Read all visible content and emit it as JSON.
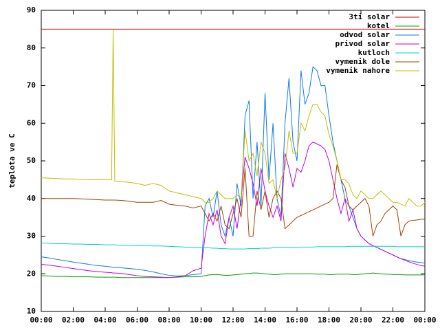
{
  "chart_data": {
    "type": "line",
    "ylabel": "teplota ve C",
    "x": [
      0,
      0.5,
      1,
      1.5,
      2,
      2.5,
      3,
      3.5,
      4,
      4.4,
      4.5,
      4.6,
      5,
      5.5,
      6,
      6.5,
      7,
      7.5,
      8,
      8.5,
      9,
      9.5,
      10,
      10.25,
      10.5,
      10.75,
      11,
      11.25,
      11.5,
      11.75,
      12,
      12.25,
      12.5,
      12.75,
      13,
      13.25,
      13.5,
      13.75,
      14,
      14.25,
      14.5,
      14.75,
      15,
      15.25,
      15.5,
      15.75,
      16,
      16.25,
      16.5,
      16.75,
      17,
      17.25,
      17.5,
      17.75,
      18,
      18.25,
      18.5,
      18.75,
      19,
      19.25,
      19.5,
      19.75,
      20,
      20.25,
      20.5,
      20.75,
      21,
      21.25,
      21.5,
      21.75,
      22,
      22.25,
      22.5,
      22.75,
      23,
      23.25,
      23.5,
      23.75,
      24
    ],
    "xlim": [
      0,
      24
    ],
    "xticks": [
      {
        "value": 0,
        "label": "00:00"
      },
      {
        "value": 2,
        "label": "02:00"
      },
      {
        "value": 4,
        "label": "04:00"
      },
      {
        "value": 6,
        "label": "06:00"
      },
      {
        "value": 8,
        "label": "08:00"
      },
      {
        "value": 10,
        "label": "10:00"
      },
      {
        "value": 12,
        "label": "12:00"
      },
      {
        "value": 14,
        "label": "14:00"
      },
      {
        "value": 16,
        "label": "16:00"
      },
      {
        "value": 18,
        "label": "18:00"
      },
      {
        "value": 20,
        "label": "20:00"
      },
      {
        "value": 22,
        "label": "22:00"
      },
      {
        "value": 24,
        "label": "00:00"
      }
    ],
    "ylim": [
      10,
      90
    ],
    "yticks": [
      10,
      20,
      30,
      40,
      50,
      60,
      70,
      80,
      90
    ],
    "grid": false,
    "legend": "top-right",
    "series": [
      {
        "name": "3ti solar",
        "color": "#c00000",
        "values": [
          85,
          85,
          85,
          85,
          85,
          85,
          85,
          85,
          85,
          85,
          85,
          85,
          85,
          85,
          85,
          85,
          85,
          85,
          85,
          85,
          85,
          85,
          85,
          85,
          85,
          85,
          85,
          85,
          85,
          85,
          85,
          85,
          85,
          85,
          85,
          85,
          85,
          85,
          85,
          85,
          85,
          85,
          85,
          85,
          85,
          85,
          85,
          85,
          85,
          85,
          85,
          85,
          85,
          85,
          85,
          85,
          85,
          85,
          85,
          85,
          85,
          85,
          85,
          85,
          85,
          85,
          85,
          85,
          85,
          85,
          85,
          85,
          85,
          85,
          85,
          85,
          85,
          85,
          85
        ]
      },
      {
        "name": "kotel",
        "color": "#00a000",
        "values": [
          19.5,
          19.4,
          19.3,
          19.3,
          19.2,
          19.2,
          19.2,
          19.1,
          19.1,
          19.1,
          19.1,
          19.1,
          19,
          19,
          19,
          19,
          19,
          19,
          19,
          19.1,
          19.2,
          19.2,
          19.3,
          19.5,
          19.7,
          19.8,
          19.8,
          19.7,
          19.6,
          19.6,
          19.7,
          19.8,
          19.9,
          20,
          20.1,
          20.2,
          20.2,
          20.1,
          20,
          19.9,
          19.8,
          19.8,
          19.9,
          20,
          20,
          20,
          20,
          20,
          20,
          20,
          20,
          19.9,
          19.9,
          19.9,
          19.8,
          19.8,
          19.9,
          19.9,
          19.9,
          19.9,
          19.8,
          19.8,
          19.9,
          20,
          20.1,
          20.2,
          20.1,
          20,
          19.9,
          19.9,
          19.8,
          19.8,
          19.8,
          19.7,
          19.7,
          19.7,
          19.7,
          19.7,
          19.7
        ]
      },
      {
        "name": "odvod solar",
        "color": "#0a7ae6",
        "values": [
          24.5,
          24.2,
          23.8,
          23.5,
          23.1,
          22.8,
          22.5,
          22.2,
          22,
          21.8,
          21.7,
          21.7,
          21.6,
          21.4,
          21.2,
          20.9,
          20.5,
          20,
          19.6,
          19.4,
          19.5,
          19.8,
          20,
          38,
          40,
          35,
          42,
          33,
          30,
          35,
          30,
          44,
          38,
          62,
          66,
          40,
          55,
          38,
          68,
          45,
          60,
          40,
          35,
          60,
          72,
          55,
          50,
          74,
          65,
          68,
          75,
          74,
          70,
          70,
          62,
          55,
          50,
          45,
          40,
          38,
          35,
          32,
          30,
          29,
          28,
          27.5,
          27,
          26.5,
          26,
          25.5,
          25,
          24.5,
          24,
          23.8,
          23.5,
          23.3,
          23.1,
          23,
          22.8
        ]
      },
      {
        "name": "privod solar",
        "color": "#c000e0",
        "values": [
          22.5,
          22.3,
          22,
          21.7,
          21.4,
          21.1,
          20.8,
          20.6,
          20.4,
          20.3,
          20.2,
          20.2,
          20.1,
          19.8,
          19.5,
          19.3,
          19.2,
          19.1,
          19,
          19.2,
          19.5,
          20.8,
          21.5,
          30,
          36,
          33,
          37,
          30,
          28,
          35,
          38,
          32,
          40,
          51,
          48,
          44,
          38,
          48,
          42,
          38,
          35,
          38,
          34,
          52,
          48,
          43,
          48,
          47,
          50,
          54,
          55,
          54.5,
          54,
          53,
          50,
          45,
          40,
          36,
          40,
          34,
          37,
          32,
          30,
          29,
          28,
          27.5,
          27,
          26.5,
          26,
          25.5,
          25,
          24.5,
          24,
          23.6,
          23.2,
          22.8,
          22.5,
          22.2,
          22
        ]
      },
      {
        "name": "kutloch",
        "color": "#00d0d0",
        "values": [
          28.2,
          28.1,
          28,
          28,
          27.9,
          27.9,
          27.8,
          27.8,
          27.7,
          27.7,
          27.7,
          27.7,
          27.6,
          27.6,
          27.5,
          27.5,
          27.4,
          27.4,
          27.3,
          27.2,
          27.1,
          27,
          27,
          26.9,
          26.9,
          26.8,
          26.8,
          26.7,
          26.7,
          26.6,
          26.6,
          26.6,
          26.6,
          26.6,
          26.7,
          26.7,
          26.7,
          26.8,
          26.8,
          26.8,
          26.9,
          26.9,
          27,
          27,
          27,
          27,
          27,
          27.1,
          27.1,
          27.1,
          27.1,
          27.2,
          27.2,
          27.2,
          27.2,
          27.2,
          27.2,
          27.2,
          27.2,
          27.3,
          27.3,
          27.3,
          27.3,
          27.3,
          27.3,
          27.3,
          27.3,
          27.3,
          27.3,
          27.3,
          27.3,
          27.2,
          27.2,
          27.2,
          27.2,
          27.2,
          27.2,
          27.2,
          27.2
        ]
      },
      {
        "name": "vymenik dole",
        "color": "#a04000",
        "values": [
          40,
          40,
          40,
          40,
          40,
          39.9,
          39.8,
          39.7,
          39.6,
          39.6,
          39.6,
          39.6,
          39.5,
          39.3,
          39,
          39,
          39,
          39.5,
          38.5,
          38.2,
          38,
          37.5,
          38,
          36,
          34,
          36,
          34,
          38,
          33,
          32,
          36,
          40,
          35,
          48,
          30,
          30,
          42,
          37,
          42,
          35,
          40,
          42,
          40,
          32,
          33,
          34,
          35,
          35.5,
          36,
          36.5,
          37,
          37.5,
          38,
          38.5,
          39,
          40,
          49,
          45,
          43,
          38,
          37,
          38,
          39,
          40,
          38,
          30,
          33,
          34,
          36,
          37,
          38,
          37,
          30,
          33,
          34,
          34.2,
          34.3,
          34.5,
          34.5
        ]
      },
      {
        "name": "vymenik nahore",
        "color": "#c0c000",
        "values": [
          45.5,
          45.4,
          45.3,
          45.2,
          45.2,
          45.1,
          45,
          45,
          45,
          45,
          85,
          44.6,
          44.5,
          44.3,
          44,
          43.5,
          44,
          43.5,
          42,
          41.5,
          41,
          40.5,
          40,
          39,
          39,
          40,
          42,
          41,
          40,
          40,
          40,
          41,
          40,
          58,
          50,
          52,
          46,
          55,
          52,
          44,
          45,
          40,
          45,
          48,
          58,
          52,
          52,
          60,
          58,
          62,
          65,
          65,
          63,
          62,
          57,
          54,
          50,
          45,
          45,
          44,
          41,
          40,
          42,
          41,
          40,
          40,
          41,
          42,
          41,
          40,
          39,
          39,
          38.5,
          38,
          40,
          39,
          38,
          38,
          39
        ]
      }
    ]
  }
}
